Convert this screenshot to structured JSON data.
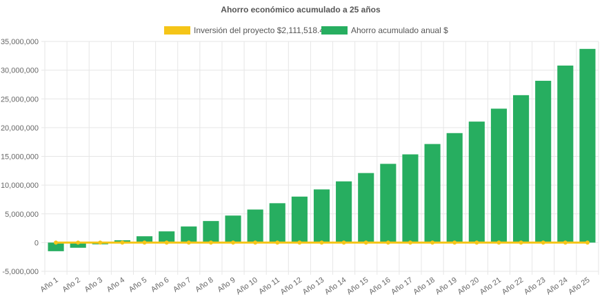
{
  "chart_data": {
    "type": "bar",
    "title": "Ahorro económico acumulado a 25 años",
    "categories": [
      "Año 1",
      "Año 2",
      "Año 3",
      "Año 4",
      "Año 5",
      "Año 6",
      "Año 7",
      "Año 8",
      "Año 9",
      "Año 10",
      "Año 11",
      "Año 12",
      "Año 13",
      "Año 14",
      "Año 15",
      "Año 16",
      "Año 17",
      "Año 18",
      "Año 19",
      "Año 20",
      "Año 21",
      "Año 22",
      "Año 23",
      "Año 24",
      "Año 25"
    ],
    "series": [
      {
        "name": "Inversión del proyecto $2,111,518.45",
        "type": "line",
        "color": "#f5c518",
        "values": [
          0,
          0,
          0,
          0,
          0,
          0,
          0,
          0,
          0,
          0,
          0,
          0,
          0,
          0,
          0,
          0,
          0,
          0,
          0,
          0,
          0,
          0,
          0,
          0,
          0
        ]
      },
      {
        "name": "Ahorro acumulado anual $",
        "type": "bar",
        "color": "#27ae60",
        "values": [
          -1500000,
          -900000,
          -300000,
          400000,
          1100000,
          1950000,
          2800000,
          3750000,
          4700000,
          5750000,
          6850000,
          8000000,
          9250000,
          10650000,
          12100000,
          13700000,
          15350000,
          17150000,
          19050000,
          21050000,
          23300000,
          25650000,
          28150000,
          30800000,
          33700000
        ]
      }
    ],
    "ylim": [
      -5000000,
      35000000
    ],
    "yticks": [
      -5000000,
      0,
      5000000,
      10000000,
      15000000,
      20000000,
      25000000,
      30000000,
      35000000
    ],
    "ytick_labels": [
      "-5,000,000",
      "0",
      "5,000,000",
      "10,000,000",
      "15,000,000",
      "20,000,000",
      "25,000,000",
      "30,000,000",
      "35,000,000"
    ],
    "grid": true,
    "legend_position": "top"
  }
}
